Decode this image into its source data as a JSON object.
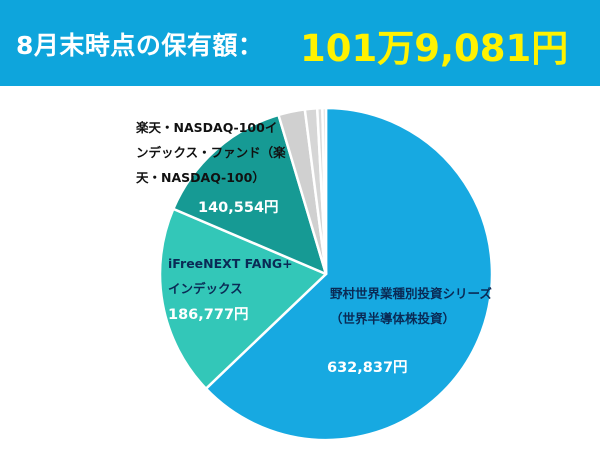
{
  "header": {
    "title": "8月末時点の保有額：",
    "total": "101万9,081円"
  },
  "chart_data": {
    "type": "pie",
    "title": "8月末時点の保有額：101万9,081円",
    "slices": [
      {
        "name": "野村世界業種別投資シリーズ（世界半導体株投資）",
        "label_lines": [
          "野村世界業種別投資シリーズ",
          "（世界半導体株投資）"
        ],
        "value": 632837,
        "value_label": "632,837円",
        "color": "#17a9e1"
      },
      {
        "name": "iFreeNEXT FANG+インデックス",
        "label_lines": [
          "iFreeNEXT FANG+",
          "インデックス"
        ],
        "value": 186777,
        "value_label": "186,777円",
        "color": "#33c7b8"
      },
      {
        "name": "楽天・NASDAQ-100インデックス・ファンド（楽天・NASDAQ-100）",
        "label_lines": [
          "楽天・NASDAQ-100イ",
          "ンデックス・ファンド（楽",
          "天・NASDAQ-100）"
        ],
        "value": 140554,
        "value_label": "140,554円",
        "color": "#169a94"
      },
      {
        "name": "",
        "label_lines": [],
        "value": 26000,
        "value_label": "",
        "color": "#d0d0d0"
      },
      {
        "name": "",
        "label_lines": [],
        "value": 12000,
        "value_label": "",
        "color": "#d6d6d6"
      },
      {
        "name": "",
        "label_lines": [],
        "value": 5000,
        "value_label": "",
        "color": "#dcdcdc"
      },
      {
        "name": "",
        "label_lines": [],
        "value": 3500,
        "value_label": "",
        "color": "#e0e0e0"
      }
    ]
  }
}
